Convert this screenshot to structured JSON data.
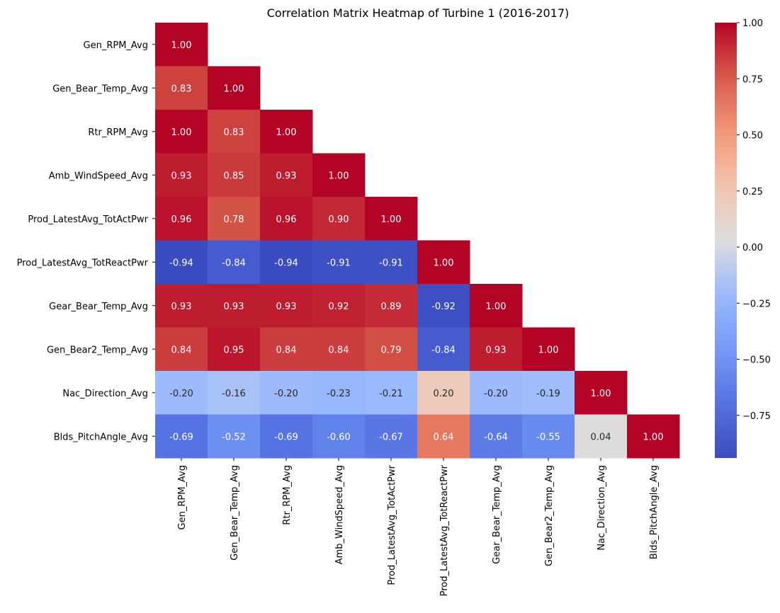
{
  "chart_data": {
    "type": "heatmap",
    "title": "Correlation Matrix Heatmap of Turbine 1 (2016-2017)",
    "xlabel": "",
    "ylabel": "",
    "variables": [
      "Gen_RPM_Avg",
      "Gen_Bear_Temp_Avg",
      "Rtr_RPM_Avg",
      "Amb_WindSpeed_Avg",
      "Prod_LatestAvg_TotActPwr",
      "Prod_LatestAvg_TotReactPwr",
      "Gear_Bear_Temp_Avg",
      "Gen_Bear2_Temp_Avg",
      "Nac_Direction_Avg",
      "Blds_PitchAngle_Avg"
    ],
    "mask": "upper triangle hidden",
    "values": [
      [
        1.0
      ],
      [
        0.83,
        1.0
      ],
      [
        1.0,
        0.83,
        1.0
      ],
      [
        0.93,
        0.85,
        0.93,
        1.0
      ],
      [
        0.96,
        0.78,
        0.96,
        0.9,
        1.0
      ],
      [
        -0.94,
        -0.84,
        -0.94,
        -0.91,
        -0.91,
        1.0
      ],
      [
        0.93,
        0.93,
        0.93,
        0.92,
        0.89,
        -0.92,
        1.0
      ],
      [
        0.84,
        0.95,
        0.84,
        0.84,
        0.79,
        -0.84,
        0.93,
        1.0
      ],
      [
        -0.2,
        -0.16,
        -0.2,
        -0.23,
        -0.21,
        0.2,
        -0.2,
        -0.19,
        1.0
      ],
      [
        -0.69,
        -0.52,
        -0.69,
        -0.6,
        -0.67,
        0.64,
        -0.64,
        -0.55,
        0.04,
        1.0
      ]
    ],
    "colormap": "coolwarm",
    "colorbar": {
      "min": -0.94,
      "max": 1.0,
      "ticks": [
        1.0,
        0.75,
        0.5,
        0.25,
        0.0,
        -0.25,
        -0.5,
        -0.75
      ],
      "tick_labels": [
        "1.00",
        "0.75",
        "0.50",
        "0.25",
        "0.00",
        "−0.25",
        "−0.50",
        "−0.75"
      ]
    },
    "grid": false
  }
}
